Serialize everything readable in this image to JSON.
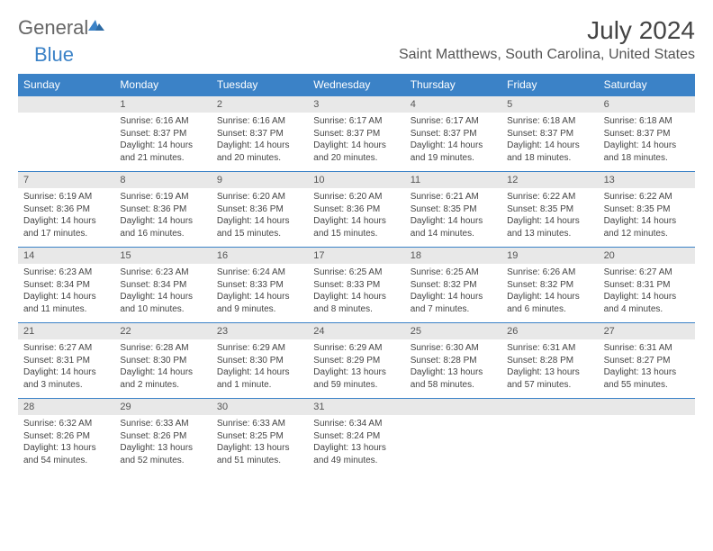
{
  "logo": {
    "part1": "General",
    "part2": "Blue"
  },
  "title": "July 2024",
  "location": "Saint Matthews, South Carolina, United States",
  "day_headers": [
    "Sunday",
    "Monday",
    "Tuesday",
    "Wednesday",
    "Thursday",
    "Friday",
    "Saturday"
  ],
  "colors": {
    "header_bg": "#3b82c7",
    "daynum_bg": "#e8e8e8"
  },
  "weeks": [
    {
      "nums": [
        "",
        "1",
        "2",
        "3",
        "4",
        "5",
        "6"
      ],
      "cells": [
        {
          "sunrise": "",
          "sunset": "",
          "day": ""
        },
        {
          "sunrise": "Sunrise: 6:16 AM",
          "sunset": "Sunset: 8:37 PM",
          "day": "Daylight: 14 hours and 21 minutes."
        },
        {
          "sunrise": "Sunrise: 6:16 AM",
          "sunset": "Sunset: 8:37 PM",
          "day": "Daylight: 14 hours and 20 minutes."
        },
        {
          "sunrise": "Sunrise: 6:17 AM",
          "sunset": "Sunset: 8:37 PM",
          "day": "Daylight: 14 hours and 20 minutes."
        },
        {
          "sunrise": "Sunrise: 6:17 AM",
          "sunset": "Sunset: 8:37 PM",
          "day": "Daylight: 14 hours and 19 minutes."
        },
        {
          "sunrise": "Sunrise: 6:18 AM",
          "sunset": "Sunset: 8:37 PM",
          "day": "Daylight: 14 hours and 18 minutes."
        },
        {
          "sunrise": "Sunrise: 6:18 AM",
          "sunset": "Sunset: 8:37 PM",
          "day": "Daylight: 14 hours and 18 minutes."
        }
      ]
    },
    {
      "nums": [
        "7",
        "8",
        "9",
        "10",
        "11",
        "12",
        "13"
      ],
      "cells": [
        {
          "sunrise": "Sunrise: 6:19 AM",
          "sunset": "Sunset: 8:36 PM",
          "day": "Daylight: 14 hours and 17 minutes."
        },
        {
          "sunrise": "Sunrise: 6:19 AM",
          "sunset": "Sunset: 8:36 PM",
          "day": "Daylight: 14 hours and 16 minutes."
        },
        {
          "sunrise": "Sunrise: 6:20 AM",
          "sunset": "Sunset: 8:36 PM",
          "day": "Daylight: 14 hours and 15 minutes."
        },
        {
          "sunrise": "Sunrise: 6:20 AM",
          "sunset": "Sunset: 8:36 PM",
          "day": "Daylight: 14 hours and 15 minutes."
        },
        {
          "sunrise": "Sunrise: 6:21 AM",
          "sunset": "Sunset: 8:35 PM",
          "day": "Daylight: 14 hours and 14 minutes."
        },
        {
          "sunrise": "Sunrise: 6:22 AM",
          "sunset": "Sunset: 8:35 PM",
          "day": "Daylight: 14 hours and 13 minutes."
        },
        {
          "sunrise": "Sunrise: 6:22 AM",
          "sunset": "Sunset: 8:35 PM",
          "day": "Daylight: 14 hours and 12 minutes."
        }
      ]
    },
    {
      "nums": [
        "14",
        "15",
        "16",
        "17",
        "18",
        "19",
        "20"
      ],
      "cells": [
        {
          "sunrise": "Sunrise: 6:23 AM",
          "sunset": "Sunset: 8:34 PM",
          "day": "Daylight: 14 hours and 11 minutes."
        },
        {
          "sunrise": "Sunrise: 6:23 AM",
          "sunset": "Sunset: 8:34 PM",
          "day": "Daylight: 14 hours and 10 minutes."
        },
        {
          "sunrise": "Sunrise: 6:24 AM",
          "sunset": "Sunset: 8:33 PM",
          "day": "Daylight: 14 hours and 9 minutes."
        },
        {
          "sunrise": "Sunrise: 6:25 AM",
          "sunset": "Sunset: 8:33 PM",
          "day": "Daylight: 14 hours and 8 minutes."
        },
        {
          "sunrise": "Sunrise: 6:25 AM",
          "sunset": "Sunset: 8:32 PM",
          "day": "Daylight: 14 hours and 7 minutes."
        },
        {
          "sunrise": "Sunrise: 6:26 AM",
          "sunset": "Sunset: 8:32 PM",
          "day": "Daylight: 14 hours and 6 minutes."
        },
        {
          "sunrise": "Sunrise: 6:27 AM",
          "sunset": "Sunset: 8:31 PM",
          "day": "Daylight: 14 hours and 4 minutes."
        }
      ]
    },
    {
      "nums": [
        "21",
        "22",
        "23",
        "24",
        "25",
        "26",
        "27"
      ],
      "cells": [
        {
          "sunrise": "Sunrise: 6:27 AM",
          "sunset": "Sunset: 8:31 PM",
          "day": "Daylight: 14 hours and 3 minutes."
        },
        {
          "sunrise": "Sunrise: 6:28 AM",
          "sunset": "Sunset: 8:30 PM",
          "day": "Daylight: 14 hours and 2 minutes."
        },
        {
          "sunrise": "Sunrise: 6:29 AM",
          "sunset": "Sunset: 8:30 PM",
          "day": "Daylight: 14 hours and 1 minute."
        },
        {
          "sunrise": "Sunrise: 6:29 AM",
          "sunset": "Sunset: 8:29 PM",
          "day": "Daylight: 13 hours and 59 minutes."
        },
        {
          "sunrise": "Sunrise: 6:30 AM",
          "sunset": "Sunset: 8:28 PM",
          "day": "Daylight: 13 hours and 58 minutes."
        },
        {
          "sunrise": "Sunrise: 6:31 AM",
          "sunset": "Sunset: 8:28 PM",
          "day": "Daylight: 13 hours and 57 minutes."
        },
        {
          "sunrise": "Sunrise: 6:31 AM",
          "sunset": "Sunset: 8:27 PM",
          "day": "Daylight: 13 hours and 55 minutes."
        }
      ]
    },
    {
      "nums": [
        "28",
        "29",
        "30",
        "31",
        "",
        "",
        ""
      ],
      "cells": [
        {
          "sunrise": "Sunrise: 6:32 AM",
          "sunset": "Sunset: 8:26 PM",
          "day": "Daylight: 13 hours and 54 minutes."
        },
        {
          "sunrise": "Sunrise: 6:33 AM",
          "sunset": "Sunset: 8:26 PM",
          "day": "Daylight: 13 hours and 52 minutes."
        },
        {
          "sunrise": "Sunrise: 6:33 AM",
          "sunset": "Sunset: 8:25 PM",
          "day": "Daylight: 13 hours and 51 minutes."
        },
        {
          "sunrise": "Sunrise: 6:34 AM",
          "sunset": "Sunset: 8:24 PM",
          "day": "Daylight: 13 hours and 49 minutes."
        },
        {
          "sunrise": "",
          "sunset": "",
          "day": ""
        },
        {
          "sunrise": "",
          "sunset": "",
          "day": ""
        },
        {
          "sunrise": "",
          "sunset": "",
          "day": ""
        }
      ]
    }
  ]
}
